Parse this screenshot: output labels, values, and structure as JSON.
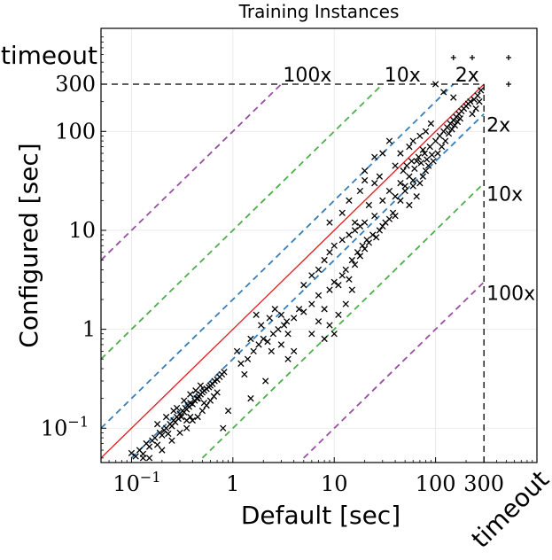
{
  "chart_data": {
    "type": "scatter",
    "title": "Training Instances",
    "xlabel": "Default [sec]",
    "ylabel": "Configured [sec]",
    "scale": "log",
    "xlim": [
      0.05,
      1000
    ],
    "ylim": [
      0.045,
      1100
    ],
    "cutoff": 300,
    "timeout_label": "timeout",
    "x_ticks": [
      {
        "value": 0.1,
        "label": "10",
        "sup": "−1"
      },
      {
        "value": 1,
        "label": "1",
        "sup": ""
      },
      {
        "value": 10,
        "label": "10",
        "sup": ""
      },
      {
        "value": 100,
        "label": "100",
        "sup": ""
      },
      {
        "value": 300,
        "label": "300",
        "sup": ""
      }
    ],
    "y_ticks": [
      {
        "value": 0.1,
        "label": "10",
        "sup": "−1"
      },
      {
        "value": 1,
        "label": "1",
        "sup": ""
      },
      {
        "value": 10,
        "label": "10",
        "sup": ""
      },
      {
        "value": 100,
        "label": "100",
        "sup": ""
      },
      {
        "value": 300,
        "label": "300",
        "sup": ""
      }
    ],
    "speedup_lines": [
      {
        "factor": 100,
        "label": "100x",
        "color": "#984ea3",
        "side": "above"
      },
      {
        "factor": 10,
        "label": "10x",
        "color": "#4daf4a",
        "side": "above"
      },
      {
        "factor": 2,
        "label": "2x",
        "color": "#377eb8",
        "side": "above"
      },
      {
        "factor": 2,
        "label": "2x",
        "color": "#377eb8",
        "side": "below"
      },
      {
        "factor": 10,
        "label": "10x",
        "color": "#4daf4a",
        "side": "below"
      },
      {
        "factor": 100,
        "label": "100x",
        "color": "#984ea3",
        "side": "below"
      }
    ],
    "diagonal_color": "#e41a1c",
    "grid": true,
    "timeout_points": [
      {
        "x": 150,
        "y": "timeout"
      },
      {
        "x": 230,
        "y": "timeout"
      },
      {
        "x": "timeout",
        "y": "timeout"
      },
      {
        "x": "timeout",
        "y": 300
      }
    ],
    "points": [
      [
        0.1,
        0.056
      ],
      [
        0.11,
        0.052
      ],
      [
        0.12,
        0.06
      ],
      [
        0.13,
        0.055
      ],
      [
        0.14,
        0.07
      ],
      [
        0.15,
        0.065
      ],
      [
        0.16,
        0.075
      ],
      [
        0.17,
        0.08
      ],
      [
        0.18,
        0.068
      ],
      [
        0.19,
        0.09
      ],
      [
        0.2,
        0.085
      ],
      [
        0.21,
        0.095
      ],
      [
        0.22,
        0.1
      ],
      [
        0.23,
        0.088
      ],
      [
        0.24,
        0.11
      ],
      [
        0.25,
        0.105
      ],
      [
        0.26,
        0.12
      ],
      [
        0.27,
        0.115
      ],
      [
        0.28,
        0.13
      ],
      [
        0.29,
        0.125
      ],
      [
        0.3,
        0.14
      ],
      [
        0.31,
        0.13
      ],
      [
        0.32,
        0.15
      ],
      [
        0.33,
        0.145
      ],
      [
        0.34,
        0.16
      ],
      [
        0.35,
        0.155
      ],
      [
        0.36,
        0.17
      ],
      [
        0.37,
        0.165
      ],
      [
        0.38,
        0.18
      ],
      [
        0.4,
        0.175
      ],
      [
        0.42,
        0.19
      ],
      [
        0.44,
        0.2
      ],
      [
        0.46,
        0.21
      ],
      [
        0.48,
        0.22
      ],
      [
        0.5,
        0.23
      ],
      [
        0.52,
        0.24
      ],
      [
        0.55,
        0.25
      ],
      [
        0.58,
        0.26
      ],
      [
        0.6,
        0.27
      ],
      [
        0.63,
        0.28
      ],
      [
        0.66,
        0.3
      ],
      [
        0.7,
        0.31
      ],
      [
        0.74,
        0.33
      ],
      [
        0.78,
        0.35
      ],
      [
        0.82,
        0.37
      ],
      [
        0.15,
        0.05
      ],
      [
        0.2,
        0.06
      ],
      [
        0.25,
        0.075
      ],
      [
        0.3,
        0.09
      ],
      [
        0.35,
        0.1
      ],
      [
        0.4,
        0.12
      ],
      [
        0.45,
        0.13
      ],
      [
        0.5,
        0.15
      ],
      [
        0.55,
        0.17
      ],
      [
        0.6,
        0.19
      ],
      [
        0.65,
        0.21
      ],
      [
        0.7,
        0.23
      ],
      [
        0.28,
        0.16
      ],
      [
        0.33,
        0.19
      ],
      [
        0.38,
        0.22
      ],
      [
        0.43,
        0.24
      ],
      [
        0.48,
        0.27
      ],
      [
        0.18,
        0.11
      ],
      [
        0.22,
        0.13
      ],
      [
        0.26,
        0.15
      ],
      [
        0.13,
        0.05
      ],
      [
        0.35,
        0.12
      ],
      [
        0.45,
        0.2
      ],
      [
        0.38,
        0.13
      ],
      [
        0.52,
        0.18
      ],
      [
        1.2,
        0.45
      ],
      [
        1.4,
        0.5
      ],
      [
        1.6,
        0.6
      ],
      [
        1.8,
        0.7
      ],
      [
        2,
        0.8
      ],
      [
        2.2,
        0.75
      ],
      [
        2.5,
        0.9
      ],
      [
        2.8,
        1.0
      ],
      [
        3.2,
        1.1
      ],
      [
        3.5,
        0.9
      ],
      [
        1.5,
        0.8
      ],
      [
        1.9,
        1.1
      ],
      [
        2.3,
        1.3
      ],
      [
        2.6,
        1.6
      ],
      [
        3,
        1.4
      ],
      [
        3.4,
        1.2
      ],
      [
        4,
        1.3
      ],
      [
        4.5,
        1.6
      ],
      [
        5,
        1.5
      ],
      [
        1.3,
        0.35
      ],
      [
        1.1,
        0.6
      ],
      [
        2.1,
        0.3
      ],
      [
        1.7,
        1.4
      ],
      [
        2.4,
        0.6
      ],
      [
        0.9,
        0.15
      ],
      [
        6,
        1.8
      ],
      [
        7,
        2.2
      ],
      [
        8,
        1.6
      ],
      [
        9,
        2.5
      ],
      [
        10,
        3
      ],
      [
        11,
        2.8
      ],
      [
        12,
        3.5
      ],
      [
        13,
        4
      ],
      [
        14,
        3.2
      ],
      [
        15,
        5
      ],
      [
        16,
        4.5
      ],
      [
        17,
        6
      ],
      [
        18,
        5.5
      ],
      [
        19,
        7
      ],
      [
        20,
        6.5
      ],
      [
        21,
        8
      ],
      [
        22,
        7.5
      ],
      [
        24,
        9
      ],
      [
        26,
        8.5
      ],
      [
        28,
        10
      ],
      [
        30,
        11
      ],
      [
        32,
        12
      ],
      [
        35,
        13
      ],
      [
        38,
        15
      ],
      [
        40,
        14
      ],
      [
        7,
        4
      ],
      [
        8,
        5
      ],
      [
        9,
        6
      ],
      [
        10,
        7
      ],
      [
        12,
        8
      ],
      [
        14,
        9
      ],
      [
        16,
        10
      ],
      [
        18,
        11
      ],
      [
        20,
        12
      ],
      [
        25,
        14
      ],
      [
        6,
        0.9
      ],
      [
        7,
        1.2
      ],
      [
        8,
        0.8
      ],
      [
        9,
        1.1
      ],
      [
        10,
        0.9
      ],
      [
        11,
        1.4
      ],
      [
        13,
        1.8
      ],
      [
        15,
        2.5
      ],
      [
        5,
        2.8
      ],
      [
        6,
        3.5
      ],
      [
        4,
        0.6
      ],
      [
        3,
        0.7
      ],
      [
        3.5,
        0.5
      ],
      [
        30,
        20
      ],
      [
        35,
        25
      ],
      [
        40,
        22
      ],
      [
        45,
        30
      ],
      [
        50,
        28
      ],
      [
        55,
        35
      ],
      [
        60,
        32
      ],
      [
        48,
        40
      ],
      [
        52,
        45
      ],
      [
        58,
        50
      ],
      [
        62,
        42
      ],
      [
        68,
        55
      ],
      [
        72,
        48
      ],
      [
        78,
        60
      ],
      [
        82,
        52
      ],
      [
        88,
        70
      ],
      [
        92,
        58
      ],
      [
        45,
        20
      ],
      [
        50,
        25
      ],
      [
        55,
        18
      ],
      [
        60,
        28
      ],
      [
        65,
        22
      ],
      [
        70,
        30
      ],
      [
        75,
        35
      ],
      [
        80,
        40
      ],
      [
        85,
        45
      ],
      [
        95,
        50
      ],
      [
        100,
        80
      ],
      [
        110,
        90
      ],
      [
        120,
        100
      ],
      [
        130,
        110
      ],
      [
        140,
        120
      ],
      [
        150,
        130
      ],
      [
        160,
        140
      ],
      [
        170,
        150
      ],
      [
        180,
        160
      ],
      [
        200,
        180
      ],
      [
        105,
        60
      ],
      [
        115,
        70
      ],
      [
        125,
        80
      ],
      [
        135,
        95
      ],
      [
        145,
        105
      ],
      [
        155,
        115
      ],
      [
        165,
        125
      ],
      [
        175,
        135
      ],
      [
        190,
        170
      ],
      [
        210,
        190
      ],
      [
        220,
        200
      ],
      [
        240,
        210
      ],
      [
        260,
        230
      ],
      [
        280,
        260
      ],
      [
        230,
        150
      ],
      [
        250,
        170
      ],
      [
        270,
        200
      ],
      [
        30,
        60
      ],
      [
        35,
        80
      ],
      [
        40,
        45
      ],
      [
        20,
        40
      ],
      [
        25,
        30
      ],
      [
        18,
        25
      ],
      [
        22,
        18
      ],
      [
        28,
        35
      ],
      [
        16,
        12
      ],
      [
        12,
        15
      ],
      [
        14,
        20
      ],
      [
        9,
        12
      ],
      [
        100,
        300
      ],
      [
        120,
        250
      ],
      [
        150,
        220
      ],
      [
        80,
        100
      ],
      [
        60,
        80
      ],
      [
        70,
        90
      ],
      [
        90,
        120
      ],
      [
        45,
        60
      ],
      [
        55,
        70
      ],
      [
        65,
        50
      ],
      [
        75,
        65
      ],
      [
        25,
        55
      ],
      [
        20,
        32
      ],
      [
        0.8,
        0.1
      ],
      [
        1.5,
        0.2
      ]
    ]
  }
}
